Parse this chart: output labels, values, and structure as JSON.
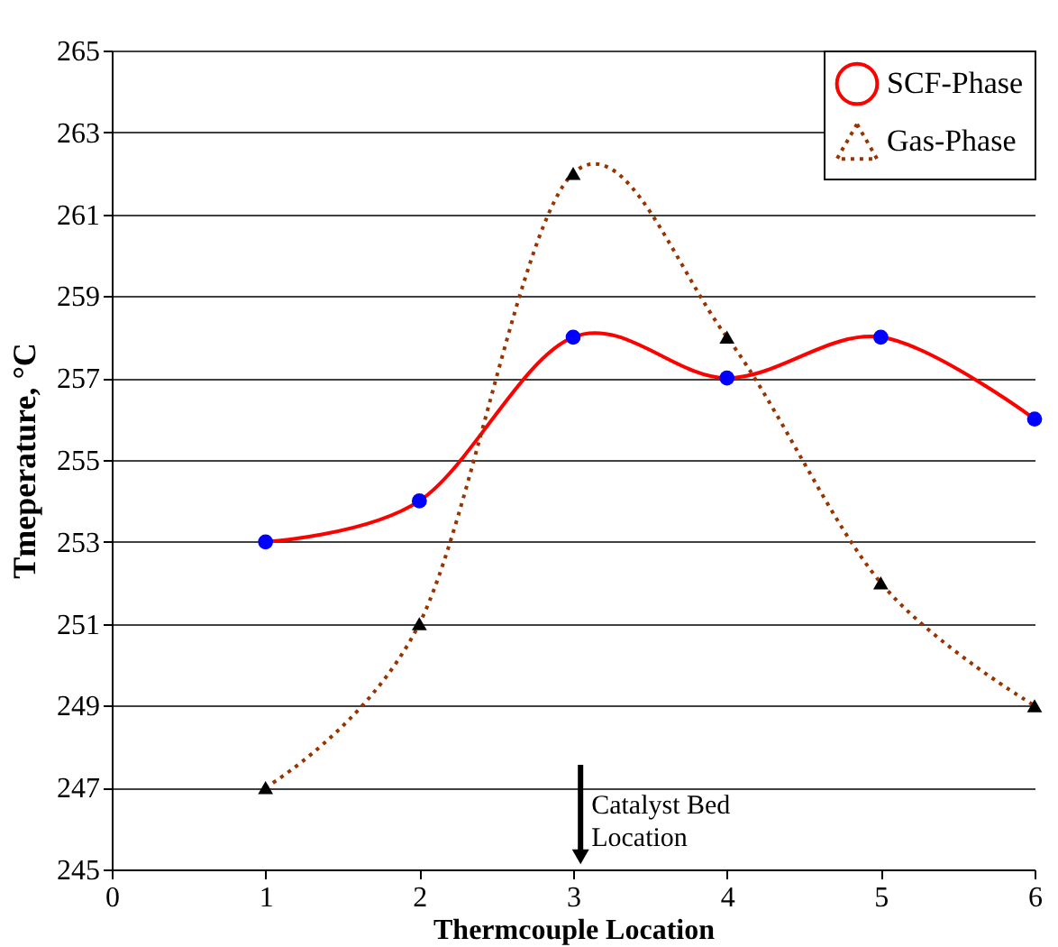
{
  "chart_data": {
    "type": "line",
    "xlabel": "Thermcouple Location",
    "ylabel": "Tmeperature, °C",
    "x": [
      1,
      2,
      3,
      4,
      5,
      6
    ],
    "series": [
      {
        "name": "SCF-Phase",
        "color": "#ff0000",
        "colors": [
          "#0000ff",
          "#0000ff",
          "#0000ff",
          "#0000ff",
          "#0000ff",
          "#0000ff"
        ],
        "marker": "circle",
        "line_style": "solid",
        "values": [
          253,
          254,
          258,
          257,
          258,
          256
        ]
      },
      {
        "name": "Gas-Phase",
        "color": "#993300",
        "colors": [
          "#000000",
          "#000000",
          "#000000",
          "#000000",
          "#000000",
          "#000000"
        ],
        "marker": "triangle",
        "line_style": "dotted",
        "values": [
          247,
          251,
          262,
          258,
          252,
          249
        ]
      }
    ],
    "xlim": [
      0,
      6
    ],
    "xticks": [
      0,
      1,
      2,
      3,
      4,
      5,
      6
    ],
    "ylim": [
      245,
      265
    ],
    "yticks": [
      245,
      247,
      249,
      251,
      253,
      255,
      257,
      259,
      261,
      263,
      265
    ],
    "grid": "y",
    "legend": "top right",
    "annotations": [
      "Catalyst  Bed\nLocation"
    ]
  }
}
